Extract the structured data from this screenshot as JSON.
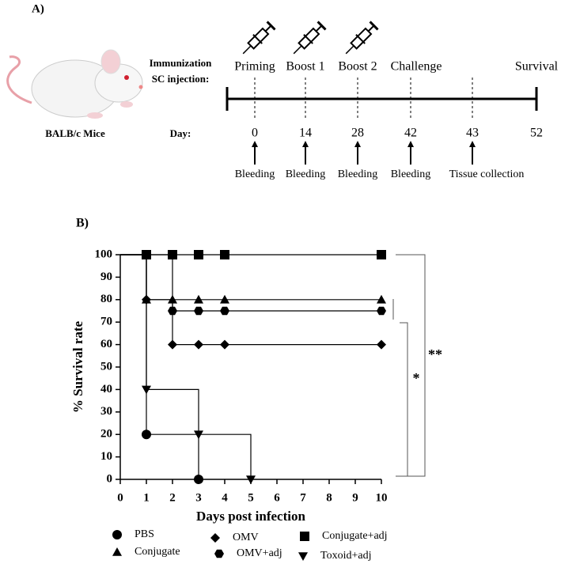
{
  "panel_a": {
    "label": "A)",
    "subject": "BALB/c Mice",
    "row_labels": [
      "Immunization",
      "SC injection:"
    ],
    "day_label": "Day:",
    "timepoints": [
      {
        "stage": "Priming",
        "day": 0,
        "sample": "Bleeding"
      },
      {
        "stage": "Boost 1",
        "day": 14,
        "sample": "Bleeding"
      },
      {
        "stage": "Boost 2",
        "day": 28,
        "sample": "Bleeding"
      },
      {
        "stage": "Challenge",
        "day": 42,
        "sample": "Bleeding"
      },
      {
        "day": 43,
        "sample": "Tissue collection"
      },
      {
        "stage": "Survival",
        "day": 52
      }
    ]
  },
  "chart_data": {
    "type": "step",
    "panel_label": "B)",
    "xlabel": "Days post infection",
    "ylabel": "% Survival rate",
    "xlim": [
      0,
      10
    ],
    "xticks": [
      0,
      1,
      2,
      3,
      4,
      5,
      6,
      7,
      8,
      9,
      10
    ],
    "ylim": [
      0,
      100
    ],
    "yticks": [
      0,
      10,
      20,
      30,
      40,
      50,
      60,
      70,
      80,
      90,
      100
    ],
    "series": [
      {
        "name": "PBS",
        "marker": "circle",
        "color": "#000000",
        "x": [
          1,
          3
        ],
        "values": [
          20,
          0
        ]
      },
      {
        "name": "Conjugate",
        "marker": "triangle",
        "color": "#000000",
        "x": [
          1,
          2,
          3,
          4,
          10
        ],
        "values": [
          80,
          80,
          80,
          80,
          80
        ]
      },
      {
        "name": "OMV",
        "marker": "diamond",
        "color": "#000000",
        "x": [
          1,
          2,
          3,
          4,
          10
        ],
        "values": [
          80,
          60,
          60,
          60,
          60
        ]
      },
      {
        "name": "OMV+adj",
        "marker": "hexagon",
        "color": "#000000",
        "x": [
          2,
          3,
          4,
          10
        ],
        "values": [
          75,
          75,
          75,
          75
        ]
      },
      {
        "name": "Conjugate+adj",
        "marker": "square",
        "color": "#000000",
        "x": [
          1,
          2,
          3,
          4,
          10
        ],
        "values": [
          100,
          100,
          100,
          100,
          100
        ]
      },
      {
        "name": "Toxoid+adj",
        "marker": "triangle-down",
        "color": "#000000",
        "x": [
          1,
          3,
          5
        ],
        "values": [
          40,
          20,
          0
        ]
      }
    ],
    "annotations": [
      "**",
      "*"
    ]
  }
}
